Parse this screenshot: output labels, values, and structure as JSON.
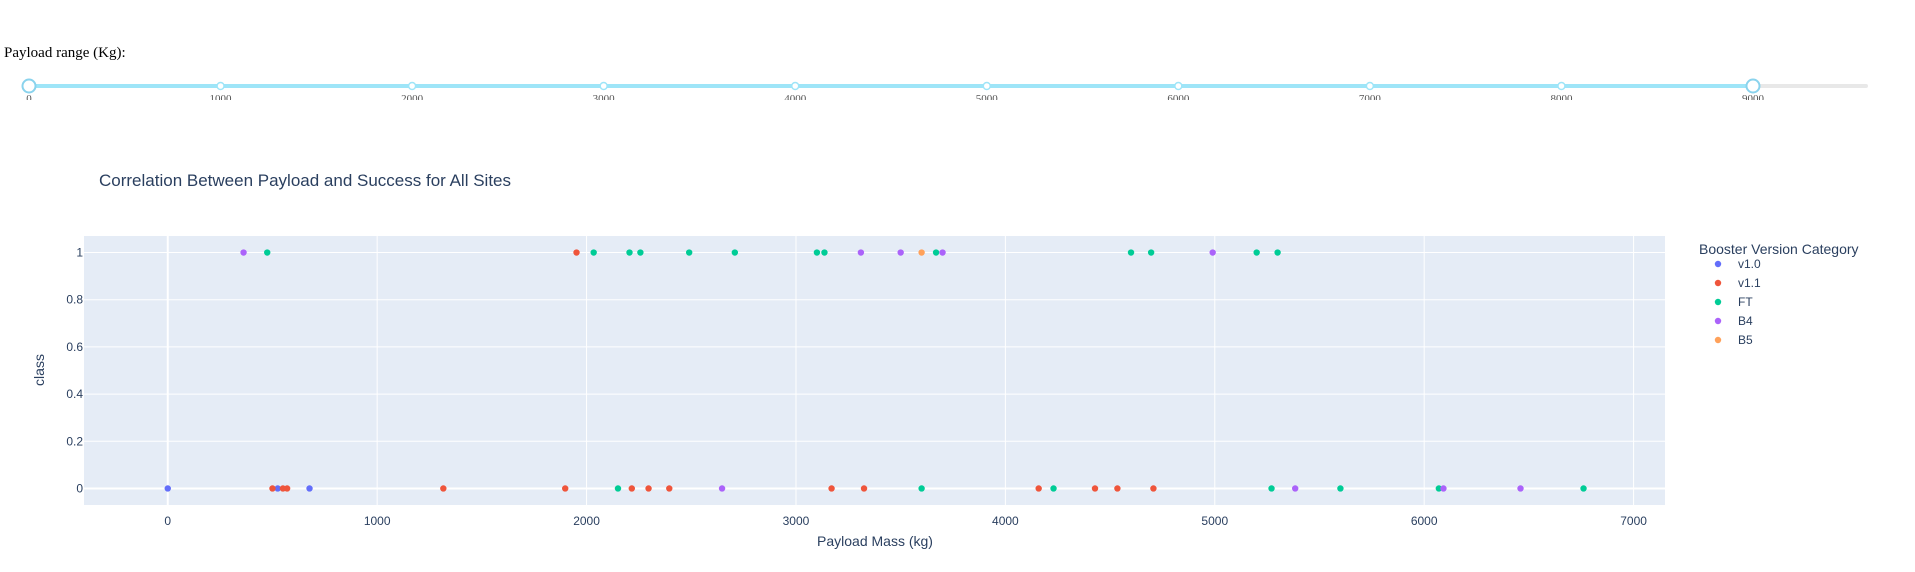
{
  "slider": {
    "label": "Payload range (Kg):",
    "marks": [
      "0",
      "1000",
      "2000",
      "3000",
      "4000",
      "5000",
      "6000",
      "7000",
      "8000",
      "9000"
    ],
    "range_min": 0,
    "range_max": 9000,
    "selected": [
      0,
      9000
    ],
    "track_color": "#9ee5f8",
    "handle_color": "#8ad3ed"
  },
  "chart_data": {
    "type": "scatter",
    "title": "Correlation Between Payload and Success for All Sites",
    "xlabel": "Payload Mass (kg)",
    "ylabel": "class",
    "xlim": [
      -400,
      7150
    ],
    "ylim": [
      -0.07,
      1.07
    ],
    "xticks": [
      "0",
      "1000",
      "2000",
      "3000",
      "4000",
      "5000",
      "6000",
      "7000"
    ],
    "yticks": [
      "0",
      "0.2",
      "0.4",
      "0.6",
      "0.8",
      "1"
    ],
    "legend_title": "Booster Version Category",
    "legend_position": "right",
    "grid": true,
    "series": [
      {
        "name": "v1.0",
        "color": "#636efa",
        "x": [
          0,
          525,
          677
        ],
        "y": [
          0,
          0,
          0
        ]
      },
      {
        "name": "v1.1",
        "color": "#ef553b",
        "x": [
          1952,
          500,
          570,
          1316,
          1898,
          2216,
          2296,
          2395,
          3170,
          3325,
          4159,
          4428,
          4535,
          4707,
          550
        ],
        "y": [
          1,
          0,
          0,
          0,
          0,
          0,
          0,
          0,
          0,
          0,
          0,
          0,
          0,
          0,
          0
        ]
      },
      {
        "name": "FT",
        "color": "#00cc96",
        "x": [
          475,
          2034,
          2205,
          2257,
          2490,
          2708,
          3100,
          3136,
          3669,
          4600,
          4696,
          5200,
          5300,
          2150,
          3600,
          4230,
          5271,
          5600,
          6070,
          6761
        ],
        "y": [
          1,
          1,
          1,
          1,
          1,
          1,
          1,
          1,
          1,
          1,
          1,
          1,
          1,
          0,
          0,
          0,
          0,
          0,
          0,
          0
        ]
      },
      {
        "name": "B4",
        "color": "#ab63fa",
        "x": [
          362,
          3310,
          3500,
          3700,
          4990,
          2647,
          5384,
          6092,
          6460
        ],
        "y": [
          1,
          1,
          1,
          1,
          1,
          0,
          0,
          0,
          0
        ]
      },
      {
        "name": "B5",
        "color": "#ffa15a",
        "x": [
          3600
        ],
        "y": [
          1
        ]
      }
    ]
  }
}
